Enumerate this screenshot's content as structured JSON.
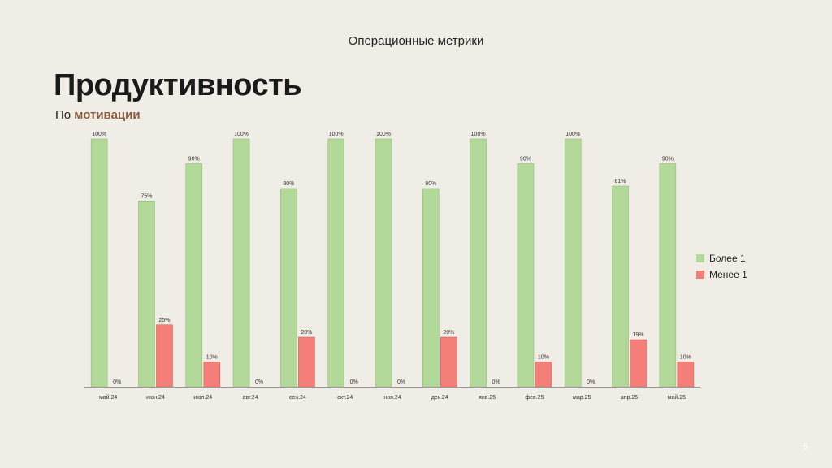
{
  "header": {
    "label": "Операционные метрики"
  },
  "page_title": "Продуктивность",
  "subtitle": {
    "prefix": "По ",
    "accent": "мотивации"
  },
  "colors": {
    "more": "#b3d99a",
    "less": "#f47f78",
    "accent": "#8b5a3c",
    "background": "#f0ede6"
  },
  "legend": [
    {
      "label": "Более 1",
      "color": "#b3d99a"
    },
    {
      "label": "Менее 1",
      "color": "#f47f78"
    }
  ],
  "page_number": "6",
  "chart_data": {
    "type": "bar",
    "categories": [
      "май.24",
      "июн.24",
      "июл.24",
      "авг.24",
      "сен.24",
      "окт.24",
      "ноя.24",
      "дек.24",
      "янв.25",
      "фев.25",
      "мар.25",
      "апр.25",
      "май.25"
    ],
    "series": [
      {
        "name": "Более 1",
        "values": [
          100,
          75,
          90,
          100,
          80,
          100,
          100,
          80,
          100,
          90,
          100,
          81,
          90
        ],
        "labels": [
          "100%",
          "75%",
          "90%",
          "100%",
          "80%",
          "100%",
          "100%",
          "80%",
          "100%",
          "90%",
          "100%",
          "81%",
          "90%"
        ]
      },
      {
        "name": "Менее 1",
        "values": [
          0,
          25,
          10,
          0,
          20,
          0,
          0,
          20,
          0,
          10,
          0,
          19,
          10
        ],
        "labels": [
          "0%",
          "25%",
          "10%",
          "0%",
          "20%",
          "0%",
          "0%",
          "20%",
          "0%",
          "10%",
          "0%",
          "19%",
          "10%"
        ]
      }
    ],
    "ylim": [
      0,
      100
    ],
    "grid": false,
    "legend_position": "right"
  }
}
